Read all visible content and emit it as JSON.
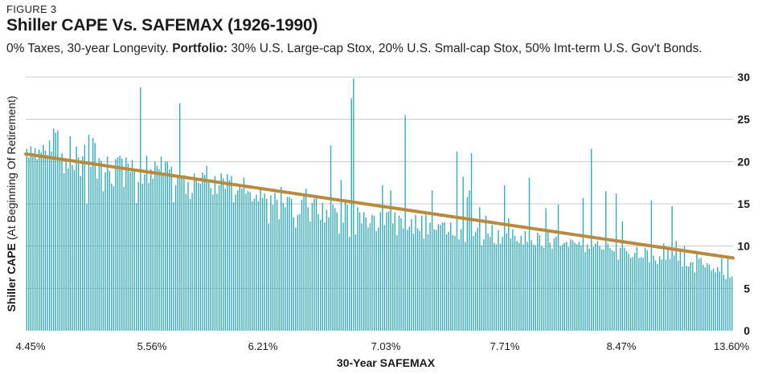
{
  "figure_label": "FIGURE 3",
  "title": "Shiller CAPE Vs. SAFEMAX (1926-1990)",
  "subtitle_plain": "0% Taxes, 30-year Longevity. ",
  "subtitle_bold": "Portfolio:",
  "subtitle_rest": " 30% U.S. Large-cap Stox, 20% U.S. Small-cap Stox, 50% Imt-term U.S. Gov't Bonds.",
  "colors": {
    "bar": "#3aa9b5",
    "trend": "#b88a3e",
    "grid": "#c8c8c8",
    "text": "#1a1a1a"
  },
  "chart_data": {
    "type": "bar",
    "title": "Shiller CAPE Vs. SAFEMAX (1926-1990)",
    "xlabel": "30-Year SAFEMAX",
    "ylabel_bold": "Shiller CAPE",
    "ylabel_rest": " (At Beginning Of Retirement)",
    "xtick_labels": [
      "4.45%",
      "5.56%",
      "6.21%",
      "7.03%",
      "7.71%",
      "8.47%",
      "13.60%"
    ],
    "yticks": [
      0,
      5,
      10,
      15,
      20,
      25,
      30
    ],
    "ylim": [
      0,
      30
    ],
    "grid": true,
    "y_axis_side": "right",
    "values": [
      21.5,
      20.5,
      21.8,
      21.0,
      21.6,
      20.3,
      21.4,
      21.1,
      22.0,
      21.3,
      20.8,
      22.5,
      21.2,
      23.9,
      23.4,
      23.7,
      20.4,
      21.0,
      18.6,
      20.1,
      19.2,
      23.0,
      19.6,
      19.0,
      21.8,
      20.5,
      18.3,
      20.6,
      22.0,
      15.0,
      23.2,
      19.4,
      22.8,
      22.2,
      18.0,
      20.4,
      20.1,
      16.5,
      18.7,
      20.6,
      18.9,
      17.4,
      17.1,
      20.3,
      20.5,
      20.7,
      20.4,
      17.0,
      20.5,
      19.8,
      18.8,
      20.2,
      18.9,
      15.1,
      17.6,
      28.8,
      17.4,
      18.5,
      20.7,
      17.5,
      19.1,
      18.0,
      20.0,
      19.5,
      19.1,
      20.6,
      18.6,
      20.0,
      20.0,
      19.1,
      19.4,
      15.2,
      17.2,
      18.4,
      26.9,
      18.2,
      18.4,
      16.2,
      17.6,
      15.6,
      16.3,
      18.6,
      18.0,
      17.5,
      17.4,
      18.7,
      18.4,
      19.5,
      17.6,
      16.9,
      16.1,
      18.3,
      16.2,
      17.2,
      18.6,
      18.0,
      16.8,
      18.5,
      17.8,
      18.3,
      15.2,
      16.1,
      16.6,
      17.2,
      16.8,
      18.1,
      16.2,
      16.5,
      16.4,
      15.3,
      15.6,
      16.1,
      15.3,
      16.9,
      15.7,
      16.2,
      15.6,
      12.7,
      16.0,
      14.9,
      16.3,
      15.5,
      13.2,
      17.0,
      15.1,
      14.6,
      15.8,
      15.8,
      15.6,
      13.4,
      12.2,
      13.7,
      13.8,
      15.5,
      16.2,
      16.8,
      14.6,
      12.9,
      15.1,
      15.6,
      15.8,
      13.8,
      13.1,
      15.1,
      12.8,
      14.3,
      13.4,
      21.9,
      14.9,
      14.5,
      14.0,
      11.5,
      17.8,
      12.8,
      15.4,
      14.9,
      11.1,
      27.5,
      29.8,
      11.4,
      14.6,
      14.0,
      12.7,
      14.0,
      13.4,
      12.2,
      12.7,
      13.7,
      13.6,
      11.8,
      12.2,
      14.0,
      17.2,
      12.5,
      14.0,
      14.1,
      16.6,
      12.7,
      14.0,
      11.3,
      13.6,
      13.3,
      12.1,
      25.5,
      11.9,
      12.3,
      13.2,
      11.5,
      13.7,
      12.1,
      11.8,
      13.6,
      10.9,
      13.7,
      11.4,
      12.8,
      16.6,
      12.0,
      11.9,
      12.6,
      12.5,
      12.8,
      12.8,
      11.4,
      11.7,
      12.8,
      11.3,
      11.2,
      21.2,
      10.8,
      12.0,
      18.2,
      10.5,
      15.8,
      16.6,
      21.0,
      11.2,
      11.7,
      12.2,
      14.6,
      10.1,
      10.8,
      13.6,
      11.5,
      11.1,
      12.5,
      10.4,
      10.2,
      11.9,
      10.3,
      11.1,
      17.2,
      11.5,
      13.3,
      10.9,
      12.0,
      11.2,
      10.6,
      10.4,
      11.2,
      10.2,
      11.8,
      10.5,
      18.1,
      10.7,
      10.2,
      10.1,
      11.6,
      11.3,
      10.0,
      9.8,
      14.5,
      11.7,
      10.4,
      9.7,
      10.9,
      11.1,
      14.9,
      10.0,
      10.2,
      10.4,
      10.5,
      9.9,
      10.8,
      10.7,
      10.4,
      10.2,
      10.5,
      10.1,
      15.7,
      9.3,
      10.2,
      9.7,
      21.5,
      9.9,
      10.3,
      10.6,
      10.0,
      9.6,
      9.6,
      16.5,
      10.3,
      9.8,
      9.5,
      9.4,
      16.2,
      8.4,
      9.8,
      12.9,
      9.8,
      9.4,
      9.1,
      8.6,
      8.7,
      9.2,
      9.9,
      8.6,
      8.7,
      8.6,
      9.8,
      9.5,
      8.1,
      15.4,
      8.9,
      8.3,
      7.9,
      8.8,
      8.4,
      10.3,
      8.4,
      9.6,
      8.5,
      14.7,
      8.9,
      10.6,
      8.3,
      9.5,
      7.6,
      10.0,
      7.7,
      7.6,
      8.1,
      8.1,
      6.9,
      9.1,
      8.5,
      8.6,
      7.8,
      7.5,
      8.0,
      7.8,
      7.1,
      7.3,
      6.9,
      7.5,
      7.0,
      8.6,
      6.6,
      6.1,
      8.6,
      6.3,
      6.4
    ],
    "trend_line": {
      "start": 20.9,
      "end": 8.6
    }
  }
}
